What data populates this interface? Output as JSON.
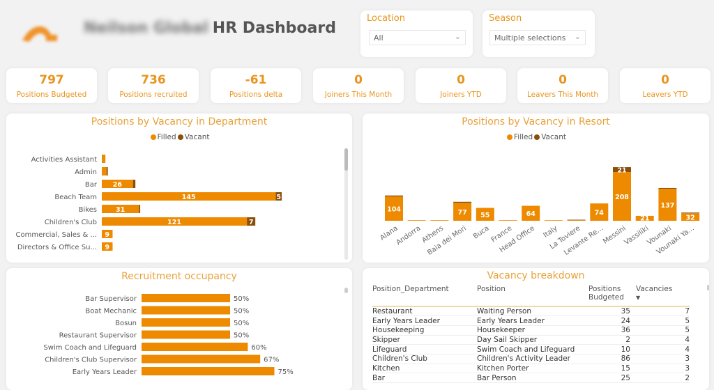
{
  "header": {
    "company": "Neilson Global",
    "title": "HR Dashboard"
  },
  "colors": {
    "filled": "#ee8a00",
    "vacant": "#8b4f0a",
    "accent": "#e8951f"
  },
  "slicers": [
    {
      "label": "Location",
      "value": "All"
    },
    {
      "label": "Season",
      "value": "Multiple selections"
    }
  ],
  "kpis": [
    {
      "value": "797",
      "label": "Positions Budgeted"
    },
    {
      "value": "736",
      "label": "Positions recruited"
    },
    {
      "value": "-61",
      "label": "Positions delta"
    },
    {
      "value": "0",
      "label": "Joiners This Month"
    },
    {
      "value": "0",
      "label": "Joiners YTD"
    },
    {
      "value": "0",
      "label": "Leavers This Month"
    },
    {
      "value": "0",
      "label": "Leavers YTD"
    }
  ],
  "chart_data": [
    {
      "type": "bar",
      "orientation": "horizontal",
      "stacked": true,
      "title": "Positions by Vacancy in Department",
      "legend": "top",
      "categories": [
        "Activities Assistant",
        "Admin",
        "Bar",
        "Beach Team",
        "Bikes",
        "Children's Club",
        "Commercial, Sales & ...",
        "Directors & Office Su..."
      ],
      "series": [
        {
          "name": "Filled",
          "values": [
            3,
            4,
            26,
            145,
            31,
            121,
            9,
            9
          ]
        },
        {
          "name": "Vacant",
          "values": [
            0,
            1,
            2,
            5,
            1,
            7,
            0,
            0
          ]
        }
      ],
      "labels": {
        "filled": [
          "",
          "",
          "26",
          "145",
          "31",
          "121",
          "9",
          "9"
        ],
        "vacant": [
          "",
          "",
          "",
          "5",
          "",
          "7",
          "",
          ""
        ]
      }
    },
    {
      "type": "bar",
      "orientation": "vertical",
      "stacked": true,
      "title": "Positions by Vacancy in Resort",
      "legend": "top",
      "categories": [
        "Alana",
        "Andorra",
        "Athens",
        "Baia dei Mori",
        "Buca",
        "France",
        "Head Office",
        "Italy",
        "La Toviere",
        "Levante Re...",
        "Messini",
        "Vassiliki",
        "Vounaki",
        "Vounaki Ya..."
      ],
      "series": [
        {
          "name": "Filled",
          "values": [
            104,
            0,
            2,
            77,
            55,
            1,
            64,
            0,
            2,
            74,
            208,
            21,
            137,
            32
          ]
        },
        {
          "name": "Vacant",
          "values": [
            4,
            0,
            0,
            4,
            0,
            0,
            0,
            0,
            2,
            0,
            21,
            0,
            3,
            3
          ]
        }
      ],
      "labels": {
        "filled": [
          "104",
          "",
          "",
          "77",
          "55",
          "",
          "64",
          "",
          "",
          "74",
          "208",
          "21",
          "137",
          "32"
        ],
        "vacant": [
          "",
          "",
          "",
          "",
          "",
          "",
          "",
          "",
          "",
          "",
          "21",
          "",
          "",
          ""
        ]
      }
    },
    {
      "type": "bar",
      "orientation": "horizontal",
      "title": "Recruitment occupancy",
      "categories": [
        "Bar Supervisor",
        "Boat Mechanic",
        "Bosun",
        "Restaurant Supervisor",
        "Swim Coach and Lifeguard",
        "Children's Club Supervisor",
        "Early Years Leader"
      ],
      "values": [
        50,
        50,
        50,
        50,
        60,
        67,
        75
      ],
      "labels": [
        "50%",
        "50%",
        "50%",
        "50%",
        "60%",
        "67%",
        "75%"
      ],
      "unit": "%"
    }
  ],
  "table": {
    "title": "Vacancy breakdown",
    "columns": [
      "Position_Department",
      "Position",
      "Positions Budgeted",
      "Vacancies"
    ],
    "sort": "Vacancies descending",
    "rows": [
      [
        "Restaurant",
        "Waiting Person",
        "35",
        "7"
      ],
      [
        "Early Years Leader",
        "Early Years Leader",
        "24",
        "5"
      ],
      [
        "Housekeeping",
        "Housekeeper",
        "36",
        "5"
      ],
      [
        "Skipper",
        "Day Sail Skipper",
        "2",
        "4"
      ],
      [
        "Lifeguard",
        "Swim Coach and Lifeguard",
        "10",
        "4"
      ],
      [
        "Children's Club",
        "Children's Activity Leader",
        "86",
        "3"
      ],
      [
        "Kitchen",
        "Kitchen Porter",
        "15",
        "3"
      ],
      [
        "Bar",
        "Bar Person",
        "25",
        "2"
      ]
    ]
  }
}
